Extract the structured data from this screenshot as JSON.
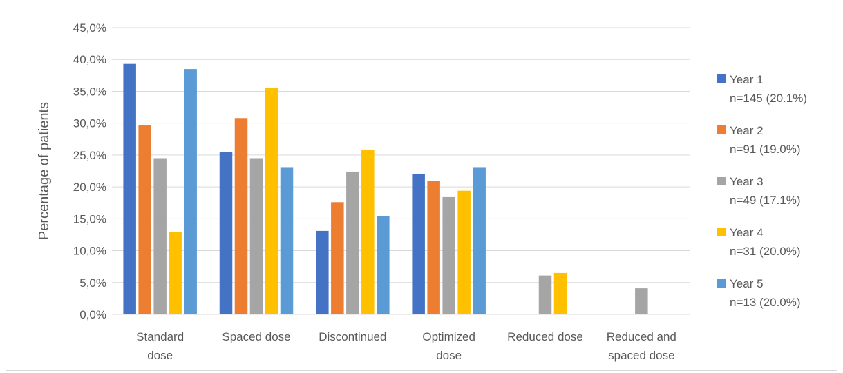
{
  "chart_data": {
    "type": "bar",
    "title": "",
    "xlabel": "",
    "ylabel": "Percentage of patients",
    "ylim": [
      0,
      45
    ],
    "ytick_step": 5,
    "ytick_labels": [
      "0,0%",
      "5,0%",
      "10,0%",
      "15,0%",
      "20,0%",
      "25,0%",
      "30,0%",
      "35,0%",
      "40,0%",
      "45,0%"
    ],
    "grid": true,
    "legend_position": "right",
    "categories": [
      [
        "Standard",
        "dose"
      ],
      [
        "Spaced dose"
      ],
      [
        "Discontinued"
      ],
      [
        "Optimized",
        "dose"
      ],
      [
        "Reduced dose"
      ],
      [
        "Reduced and",
        "spaced dose"
      ]
    ],
    "series": [
      {
        "name": "Year 1",
        "subtitle": "n=145 (20.1%)",
        "color": "#4472C4",
        "values": [
          39.3,
          25.5,
          13.1,
          22.0,
          0,
          0
        ]
      },
      {
        "name": "Year 2",
        "subtitle": "n=91 (19.0%)",
        "color": "#ED7D31",
        "values": [
          29.7,
          30.8,
          17.6,
          20.9,
          0,
          0
        ]
      },
      {
        "name": "Year 3",
        "subtitle": "n=49 (17.1%)",
        "color": "#A5A5A5",
        "values": [
          24.5,
          24.5,
          22.4,
          18.4,
          6.1,
          4.1
        ]
      },
      {
        "name": "Year 4",
        "subtitle": "n=31 (20.0%)",
        "color": "#FFC000",
        "values": [
          12.9,
          35.5,
          25.8,
          19.4,
          6.5,
          0
        ]
      },
      {
        "name": "Year 5",
        "subtitle": "n=13 (20.0%)",
        "color": "#5B9BD5",
        "values": [
          38.5,
          23.1,
          15.4,
          23.1,
          0,
          0
        ]
      }
    ]
  }
}
